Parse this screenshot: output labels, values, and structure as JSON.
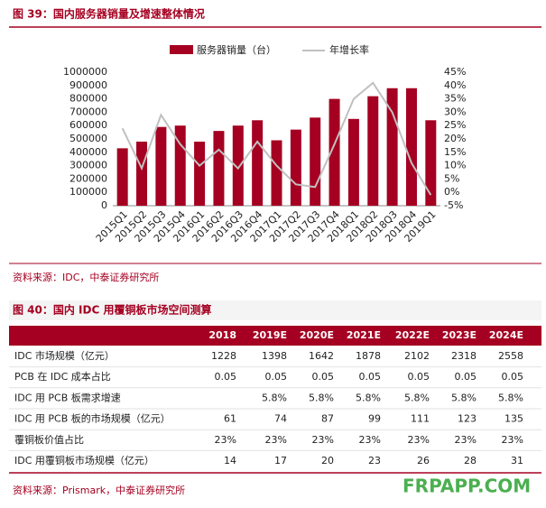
{
  "chart_data": {
    "type": "bar",
    "title": "图 39：国内服务器销量及增速整体情况",
    "categories": [
      "2015Q1",
      "2015Q2",
      "2015Q3",
      "2015Q4",
      "2016Q1",
      "2016Q2",
      "2016Q3",
      "2016Q4",
      "2017Q1",
      "2017Q2",
      "2017Q3",
      "2017Q4",
      "2018Q1",
      "2018Q2",
      "2018Q3",
      "2018Q4",
      "2019Q1"
    ],
    "series": [
      {
        "name": "服务器销量（台）",
        "color": "#a50021",
        "values": [
          430000,
          480000,
          590000,
          600000,
          480000,
          560000,
          600000,
          640000,
          490000,
          570000,
          660000,
          800000,
          650000,
          820000,
          880000,
          880000,
          640000
        ]
      },
      {
        "name": "年增长率",
        "color": "#c0c0c0",
        "axis": "y2",
        "values": [
          24,
          9,
          29,
          18,
          10,
          16,
          9,
          19,
          10,
          3,
          2,
          18,
          35,
          41,
          30,
          11,
          -1
        ]
      }
    ],
    "ylim": [
      0,
      1000000
    ],
    "yticks": [
      0,
      100000,
      200000,
      300000,
      400000,
      500000,
      600000,
      700000,
      800000,
      900000,
      1000000
    ],
    "y2lim": [
      -5,
      45
    ],
    "y2ticks": [
      {
        "value": -5,
        "label": "-5%"
      },
      {
        "value": 0,
        "label": "0%"
      },
      {
        "value": 5,
        "label": "5%"
      },
      {
        "value": 10,
        "label": "10%"
      },
      {
        "value": 15,
        "label": "15%"
      },
      {
        "value": 20,
        "label": "20%"
      },
      {
        "value": 25,
        "label": "25%"
      },
      {
        "value": 30,
        "label": "30%"
      },
      {
        "value": 35,
        "label": "35%"
      },
      {
        "value": 40,
        "label": "40%"
      },
      {
        "value": 45,
        "label": "45%"
      }
    ],
    "grid": false
  },
  "document": {
    "source1": "资料来源：IDC，中泰证券研究所",
    "table_title": "图 40：国内 IDC 用覆铜板市场空间测算",
    "table": {
      "header": [
        "2018",
        "2019E",
        "2020E",
        "2021E",
        "2022E",
        "2023E",
        "2024E"
      ],
      "rows": [
        [
          "IDC 市场规模（亿元）",
          "1228",
          "1398",
          "1642",
          "1878",
          "2102",
          "2318",
          "2558"
        ],
        [
          "PCB 在 IDC 成本占比",
          "0.05",
          "0.05",
          "0.05",
          "0.05",
          "0.05",
          "0.05",
          "0.05"
        ],
        [
          "IDC 用 PCB 板需求增速",
          null,
          "5.8%",
          "5.8%",
          "5.8%",
          "5.8%",
          "5.8%",
          "5.8%"
        ],
        [
          "IDC 用 PCB 板的市场规模（亿元）",
          "61",
          "74",
          "87",
          "99",
          "111",
          "123",
          "135"
        ],
        [
          "覆铜板价值占比",
          "23%",
          "23%",
          "23%",
          "23%",
          "23%",
          "23%",
          "23%"
        ],
        [
          "IDC 用覆铜板市场规模（亿元）",
          "14",
          "17",
          "20",
          "23",
          "26",
          "28",
          "31"
        ]
      ]
    },
    "source2": "资料来源：Prismark，中泰证券研究所",
    "watermark": "FRPAPP.COM"
  }
}
